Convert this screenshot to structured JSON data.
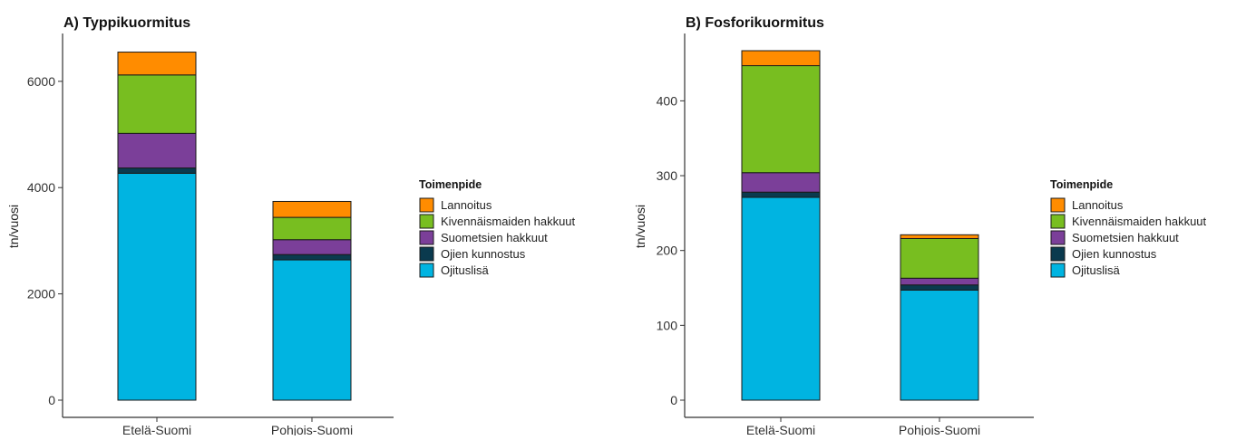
{
  "chart_data": [
    {
      "type": "bar",
      "stacked": true,
      "title": "A) Typpikuormitus",
      "xlabel": "",
      "ylabel": "tn/vuosi",
      "ylim": [
        0,
        6900
      ],
      "yticks": [
        0,
        2000,
        4000,
        6000
      ],
      "categories": [
        "Etelä-Suomi",
        "Pohjois-Suomi"
      ],
      "legend_title": "Toimenpide",
      "legend_position": "right",
      "grid": false,
      "series": [
        {
          "name": "Ojituslisä",
          "color": "#00B4E1",
          "values": [
            4270,
            2640
          ]
        },
        {
          "name": "Ojien kunnostus",
          "color": "#0A3A4E",
          "values": [
            100,
            100
          ]
        },
        {
          "name": "Suometsien hakkuut",
          "color": "#7B3F99",
          "values": [
            650,
            280
          ]
        },
        {
          "name": "Kivennäismaiden hakkuut",
          "color": "#78BE20",
          "values": [
            1100,
            420
          ]
        },
        {
          "name": "Lannoitus",
          "color": "#FF8C00",
          "values": [
            430,
            300
          ]
        }
      ]
    },
    {
      "type": "bar",
      "stacked": true,
      "title": "B) Fosforikuormitus",
      "xlabel": "",
      "ylabel": "tn/vuosi",
      "ylim": [
        0,
        490
      ],
      "yticks": [
        0,
        100,
        200,
        300,
        400
      ],
      "categories": [
        "Etelä-Suomi",
        "Pohjois-Suomi"
      ],
      "legend_title": "Toimenpide",
      "legend_position": "right",
      "grid": false,
      "series": [
        {
          "name": "Ojituslisä",
          "color": "#00B4E1",
          "values": [
            271,
            147
          ]
        },
        {
          "name": "Ojien kunnostus",
          "color": "#0A3A4E",
          "values": [
            7,
            7
          ]
        },
        {
          "name": "Suometsien hakkuut",
          "color": "#7B3F99",
          "values": [
            26,
            9
          ]
        },
        {
          "name": "Kivennäismaiden hakkuut",
          "color": "#78BE20",
          "values": [
            143,
            53
          ]
        },
        {
          "name": "Lannoitus",
          "color": "#FF8C00",
          "values": [
            20,
            5
          ]
        }
      ]
    }
  ]
}
